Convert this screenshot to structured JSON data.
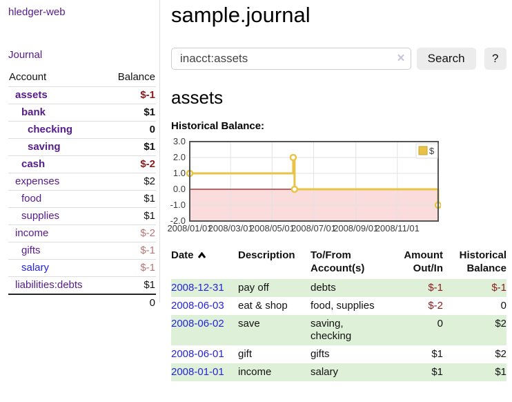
{
  "sidebar": {
    "app_title": "hledger-web",
    "journal_link": "Journal",
    "accounts": {
      "account_header": "Account",
      "balance_header": "Balance",
      "rows": [
        {
          "name": "assets",
          "depth": 0,
          "bold": true,
          "balance": "$-1",
          "tone": "neg-strong",
          "link": "purple"
        },
        {
          "name": "bank",
          "depth": 1,
          "bold": true,
          "balance": "$1",
          "tone": "normal",
          "link": "purple"
        },
        {
          "name": "checking",
          "depth": 2,
          "bold": true,
          "balance": "0",
          "tone": "normal",
          "link": "purple"
        },
        {
          "name": "saving",
          "depth": 2,
          "bold": true,
          "balance": "$1",
          "tone": "normal",
          "link": "purple"
        },
        {
          "name": "cash",
          "depth": 1,
          "bold": true,
          "balance": "$-2",
          "tone": "neg-strong",
          "link": "purple"
        },
        {
          "name": "expenses",
          "depth": 0,
          "bold": false,
          "balance": "$2",
          "tone": "normal",
          "link": "purple"
        },
        {
          "name": "food",
          "depth": 1,
          "bold": false,
          "balance": "$1",
          "tone": "normal",
          "link": "purple"
        },
        {
          "name": "supplies",
          "depth": 1,
          "bold": false,
          "balance": "$1",
          "tone": "normal",
          "link": "purple"
        },
        {
          "name": "income",
          "depth": 0,
          "bold": false,
          "balance": "$-2",
          "tone": "neg-soft",
          "link": "purple"
        },
        {
          "name": "gifts",
          "depth": 1,
          "bold": false,
          "balance": "$-1",
          "tone": "neg-soft",
          "link": "purple"
        },
        {
          "name": "salary",
          "depth": 1,
          "bold": false,
          "balance": "$-1",
          "tone": "neg-soft",
          "link": "blue"
        },
        {
          "name": "liabilities:debts",
          "depth": 0,
          "bold": false,
          "balance": "$1",
          "tone": "normal",
          "link": "purple"
        }
      ],
      "total": "0"
    }
  },
  "main": {
    "title": "sample.journal",
    "search": {
      "value": "inacct:assets",
      "clear_icon": "×",
      "search_label": "Search",
      "help_label": "?"
    },
    "account_heading": "assets"
  },
  "chart_data": {
    "type": "line",
    "step": true,
    "title": "Historical Balance:",
    "legend": {
      "label": "$",
      "position": "top-right"
    },
    "series": [
      {
        "name": "$",
        "color": "#e8c345",
        "dates": [
          "2008-01-01",
          "2008-06-01",
          "2008-06-03",
          "2008-12-31"
        ],
        "points": [
          {
            "x": 0,
            "y": 1
          },
          {
            "x": 152,
            "y": 2
          },
          {
            "x": 154,
            "y": 0
          },
          {
            "x": 365,
            "y": -1
          }
        ]
      }
    ],
    "xmax": 365,
    "ylim": [
      -2,
      3
    ],
    "yticks": [
      "3.0",
      "2.0",
      "1.0",
      "0.0",
      "-1.0",
      "-2.0"
    ],
    "xticks": [
      {
        "pos": 0,
        "label": "2008/01/01"
      },
      {
        "pos": 60,
        "label": "2008/03/01"
      },
      {
        "pos": 121,
        "label": "2008/05/01"
      },
      {
        "pos": 182,
        "label": "2008/07/01"
      },
      {
        "pos": 244,
        "label": "2008/09/01"
      },
      {
        "pos": 305,
        "label": "2008/11/01"
      }
    ],
    "grid": true,
    "negative_region_color": "#fadcdc",
    "zero_line_color": "#9c1010",
    "border_color": "#545454",
    "gridline_color": "#e2e2e2"
  },
  "register": {
    "headers": {
      "date": "Date",
      "description": "Description",
      "accounts": "To/From Account(s)",
      "amount": "Amount Out/In",
      "balance": "Historical Balance"
    },
    "rows": [
      {
        "date": "2008-12-31",
        "description": "pay off",
        "accounts": "debts",
        "amount": "$-1",
        "amount_negative": true,
        "balance": "$-1",
        "balance_negative": true
      },
      {
        "date": "2008-06-03",
        "description": "eat & shop",
        "accounts": "food, supplies",
        "amount": "$-2",
        "amount_negative": true,
        "balance": "0",
        "balance_negative": false
      },
      {
        "date": "2008-06-02",
        "description": "save",
        "accounts": "saving, checking",
        "amount": "0",
        "amount_negative": false,
        "balance": "$2",
        "balance_negative": false
      },
      {
        "date": "2008-06-01",
        "description": "gift",
        "accounts": "gifts",
        "amount": "$1",
        "amount_negative": false,
        "balance": "$2",
        "balance_negative": false
      },
      {
        "date": "2008-01-01",
        "description": "income",
        "accounts": "salary",
        "amount": "$1",
        "amount_negative": false,
        "balance": "$1",
        "balance_negative": false
      }
    ]
  }
}
